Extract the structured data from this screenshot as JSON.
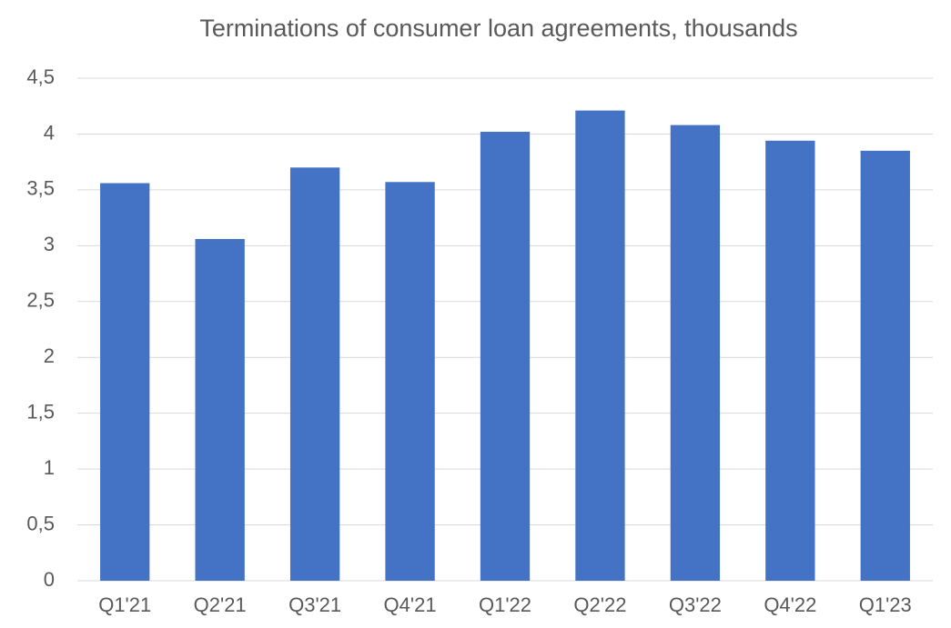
{
  "chart_data": {
    "type": "bar",
    "title": "Terminations of consumer loan agreements, thousands",
    "categories": [
      "Q1'21",
      "Q2'21",
      "Q3'21",
      "Q4'21",
      "Q1'22",
      "Q2'22",
      "Q3'22",
      "Q4'22",
      "Q1'23"
    ],
    "values": [
      3.56,
      3.06,
      3.7,
      3.57,
      4.02,
      4.21,
      4.08,
      3.94,
      3.85
    ],
    "color": "#4472c4",
    "ylim": [
      0,
      4.5
    ],
    "yticks": [
      0,
      {
        "value": 0.5,
        "label": "0,5"
      },
      1,
      {
        "value": 1.5,
        "label": "1,5"
      },
      2,
      {
        "value": 2.5,
        "label": "2,5"
      },
      3,
      {
        "value": 3.5,
        "label": "3,5"
      },
      4,
      {
        "value": 4.5,
        "label": "4,5"
      }
    ],
    "grid": true
  }
}
